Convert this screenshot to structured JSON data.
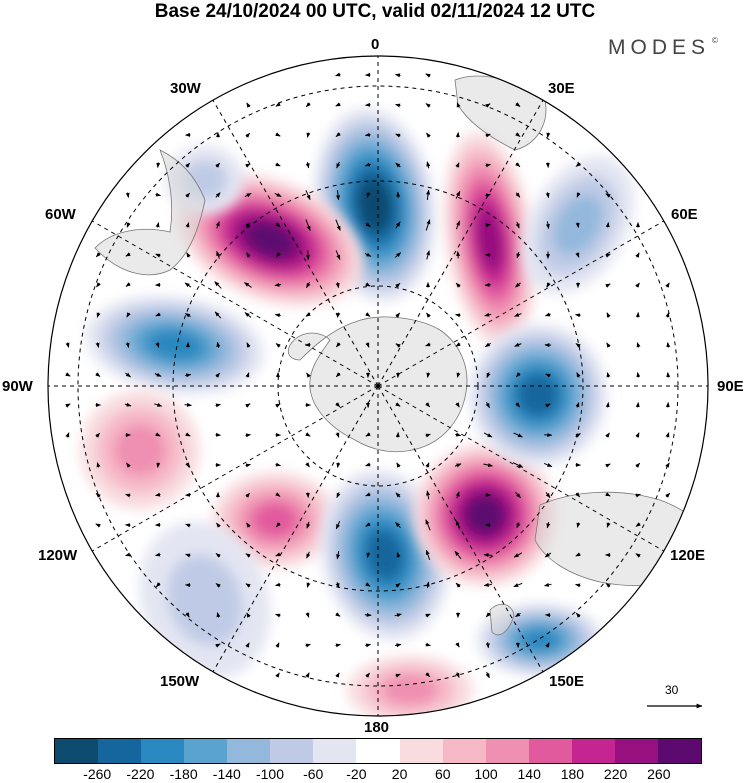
{
  "title": "Base 24/10/2024 00 UTC, valid 02/11/2024 12 UTC",
  "brand": "MODES",
  "brand_mark": "©",
  "map": {
    "projection": "south-polar-stereographic",
    "longitude_labels": {
      "lon_0": "0",
      "lon_30e": "30E",
      "lon_60e": "60E",
      "lon_90e": "90E",
      "lon_120e": "120E",
      "lon_150e": "150E",
      "lon_180": "180",
      "lon_150w": "150W",
      "lon_120w": "120W",
      "lon_90w": "90W",
      "lon_60w": "60W",
      "lon_30w": "30W"
    },
    "reference_vector_label": "30",
    "anomaly_centers": [
      {
        "name": "neg-0",
        "value": -260
      },
      {
        "name": "pos-20e",
        "value": 220
      },
      {
        "name": "neg-50e",
        "value": -100
      },
      {
        "name": "pos-45w",
        "value": 260
      },
      {
        "name": "neg-30w",
        "value": -60
      },
      {
        "name": "neg-75w",
        "value": -200
      },
      {
        "name": "pos-105w",
        "value": 120
      },
      {
        "name": "pos-150w",
        "value": 140
      },
      {
        "name": "neg-130w",
        "value": -60
      },
      {
        "name": "neg-170e",
        "value": -220
      },
      {
        "name": "pos-135e",
        "value": 260
      },
      {
        "name": "neg-95e",
        "value": -220
      },
      {
        "name": "neg-150e",
        "value": -180
      },
      {
        "name": "pos-180",
        "value": 120
      }
    ]
  },
  "colorbar": {
    "colors": [
      "#0c4a6e",
      "#14669c",
      "#2a88c0",
      "#5aa3cf",
      "#93b8dc",
      "#bfcbe6",
      "#e3e5f2",
      "#ffffff",
      "#f8dcdf",
      "#f6b8c7",
      "#ef8fb1",
      "#e25a9e",
      "#c42590",
      "#96107f",
      "#5c0a70"
    ],
    "ticks": [
      "-260",
      "-220",
      "-180",
      "-140",
      "-100",
      "-60",
      "-20",
      "20",
      "60",
      "100",
      "140",
      "180",
      "220",
      "260"
    ]
  }
}
